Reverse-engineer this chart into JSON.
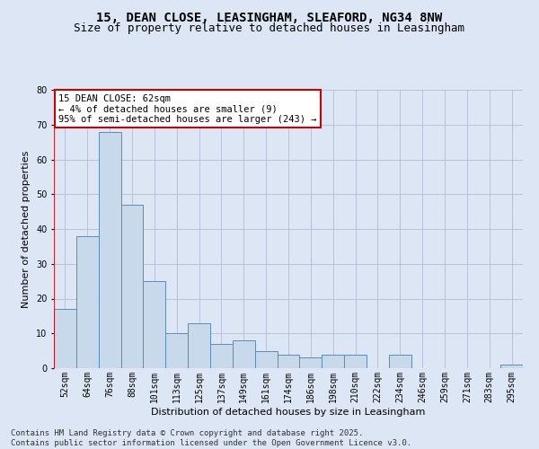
{
  "title_line1": "15, DEAN CLOSE, LEASINGHAM, SLEAFORD, NG34 8NW",
  "title_line2": "Size of property relative to detached houses in Leasingham",
  "xlabel": "Distribution of detached houses by size in Leasingham",
  "ylabel": "Number of detached properties",
  "categories": [
    "52sqm",
    "64sqm",
    "76sqm",
    "88sqm",
    "101sqm",
    "113sqm",
    "125sqm",
    "137sqm",
    "149sqm",
    "161sqm",
    "174sqm",
    "186sqm",
    "198sqm",
    "210sqm",
    "222sqm",
    "234sqm",
    "246sqm",
    "259sqm",
    "271sqm",
    "283sqm",
    "295sqm"
  ],
  "values": [
    17,
    38,
    68,
    47,
    25,
    10,
    13,
    7,
    8,
    5,
    4,
    3,
    4,
    4,
    0,
    4,
    0,
    0,
    0,
    0,
    1
  ],
  "bar_color": "#c9d9ec",
  "bar_edge_color": "#5b8db8",
  "plot_bg_color": "#dce6f5",
  "fig_bg_color": "#dce6f5",
  "ylim": [
    0,
    80
  ],
  "yticks": [
    0,
    10,
    20,
    30,
    40,
    50,
    60,
    70,
    80
  ],
  "annotation_box_text": "15 DEAN CLOSE: 62sqm\n← 4% of detached houses are smaller (9)\n95% of semi-detached houses are larger (243) →",
  "annotation_box_color": "#ffffff",
  "annotation_box_edge_color": "#cc0000",
  "ref_line_color": "#cc0000",
  "footer_line1": "Contains HM Land Registry data © Crown copyright and database right 2025.",
  "footer_line2": "Contains public sector information licensed under the Open Government Licence v3.0.",
  "title_fontsize": 10,
  "subtitle_fontsize": 9,
  "axis_label_fontsize": 8,
  "tick_fontsize": 7,
  "annotation_fontsize": 7.5,
  "footer_fontsize": 6.5
}
